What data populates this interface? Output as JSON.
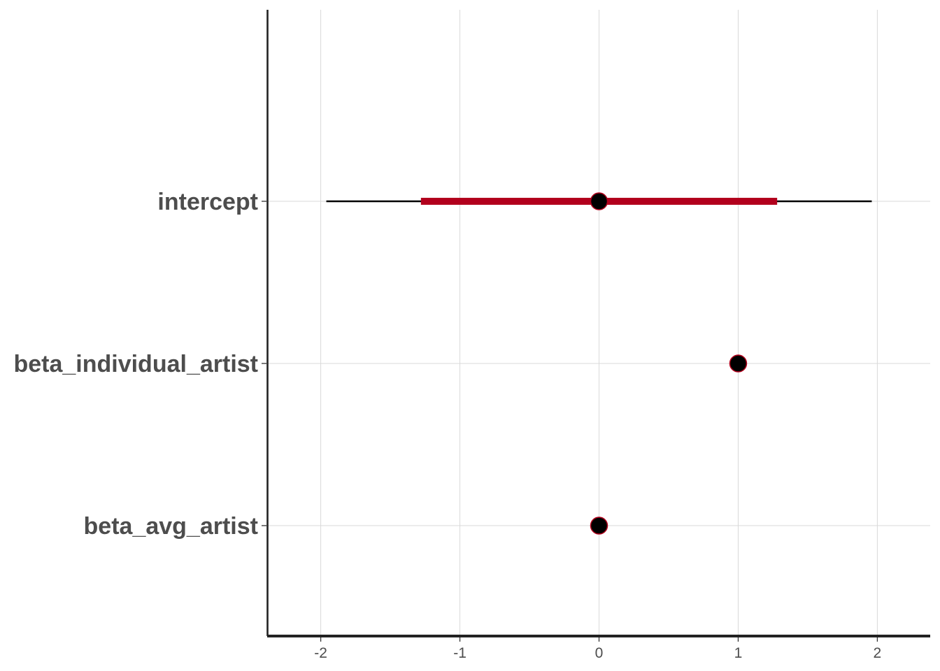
{
  "chart_data": {
    "type": "interval",
    "parameters": [
      {
        "name": "intercept",
        "point": 0.0,
        "inner": [
          -1.28,
          1.28
        ],
        "outer": [
          -1.96,
          1.96
        ]
      },
      {
        "name": "beta_individual_artist",
        "point": 1.0,
        "inner": [
          1.0,
          1.0
        ],
        "outer": [
          1.0,
          1.0
        ]
      },
      {
        "name": "beta_avg_artist",
        "point": 0.0,
        "inner": [
          0.0,
          0.0
        ],
        "outer": [
          0.0,
          0.0
        ]
      }
    ],
    "x_ticks": [
      -2,
      -1,
      0,
      1,
      2
    ],
    "x_tick_labels": [
      "-2",
      "-1",
      "0",
      "1",
      "2"
    ],
    "xlim": [
      -2.38,
      2.38
    ],
    "title": "",
    "xlabel": "",
    "ylabel": "",
    "grid": true,
    "colors": {
      "inner_interval": "#b2001d",
      "outer_interval": "#000000",
      "point_fill": "#000000",
      "point_stroke": "#b2001d"
    }
  }
}
